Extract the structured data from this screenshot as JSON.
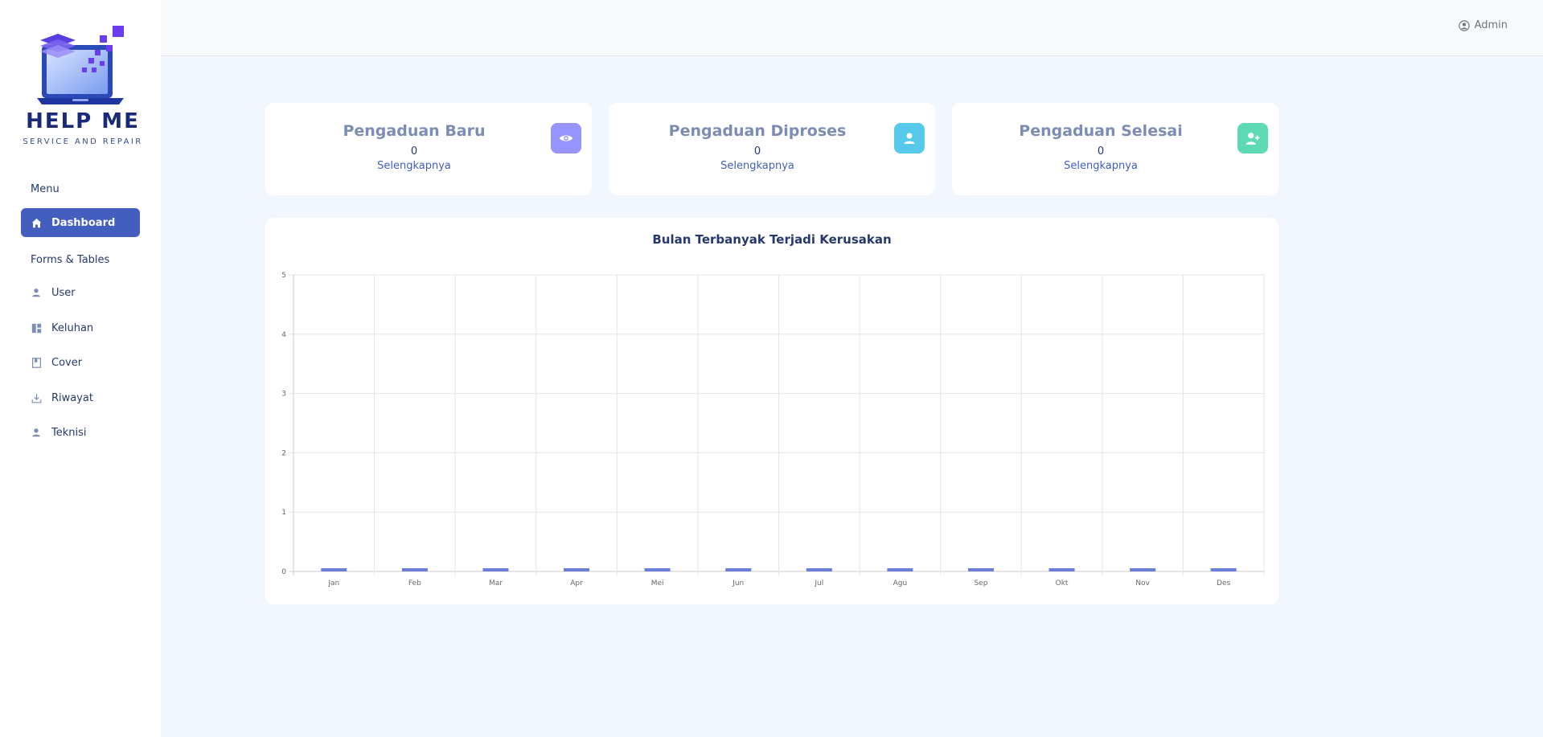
{
  "brand": {
    "title": "HELP ME",
    "subtitle": "SERVICE AND REPAIR"
  },
  "sidebar": {
    "menu_heading": "Menu",
    "section_heading": "Forms & Tables",
    "items": [
      {
        "label": "Dashboard",
        "icon": "home-icon",
        "active": true
      },
      {
        "label": "User",
        "icon": "person-icon"
      },
      {
        "label": "Keluhan",
        "icon": "layout-icon"
      },
      {
        "label": "Cover",
        "icon": "bookmark-icon"
      },
      {
        "label": "Riwayat",
        "icon": "download-icon"
      },
      {
        "label": "Teknisi",
        "icon": "person-icon"
      }
    ]
  },
  "topbar": {
    "user_label": "Admin",
    "user_icon": "user-circle-icon"
  },
  "stats": [
    {
      "title": "Pengaduan Baru",
      "value": "0",
      "link": "Selengkapnya",
      "icon": "eye-icon",
      "color": "#9694ff"
    },
    {
      "title": "Pengaduan Diproses",
      "value": "0",
      "link": "Selengkapnya",
      "icon": "person-icon",
      "color": "#57caeb"
    },
    {
      "title": "Pengaduan Selesai",
      "value": "0",
      "link": "Selengkapnya",
      "icon": "person-plus-icon",
      "color": "#5ddab4"
    }
  ],
  "chart_data": {
    "type": "bar",
    "title": "Bulan Terbanyak Terjadi Kerusakan",
    "categories": [
      "Jan",
      "Feb",
      "Mar",
      "Apr",
      "Mei",
      "Jun",
      "Jul",
      "Agu",
      "Sep",
      "Okt",
      "Nov",
      "Des"
    ],
    "values": [
      0,
      0,
      0,
      0,
      0,
      0,
      0,
      0,
      0,
      0,
      0,
      0
    ],
    "ylim": [
      0,
      5
    ],
    "yticks": [
      "0",
      "1",
      "2",
      "3",
      "4",
      "5"
    ],
    "xlabel": "",
    "ylabel": "",
    "bar_color": "#6c7fd8",
    "grid": true
  }
}
